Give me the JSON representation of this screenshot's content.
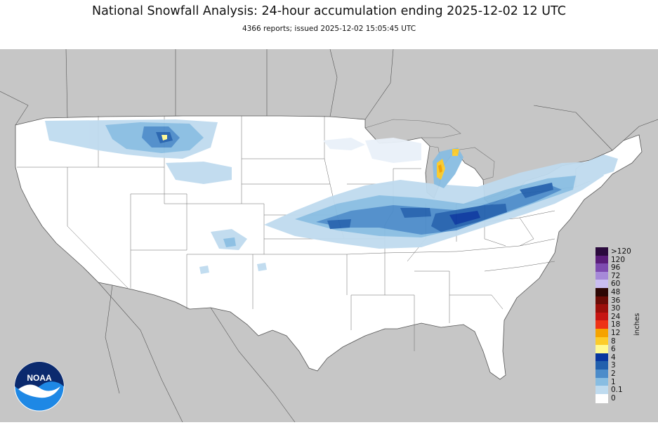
{
  "header": {
    "title": "National Snowfall Analysis: 24-hour accumulation ending 2025-12-02 12 UTC",
    "subtitle": "4366 reports; issued 2025-12-02 15:05:45 UTC"
  },
  "map": {
    "land_color": "#ffffff",
    "background_color": "#c6c6c6",
    "border_color": "#444444"
  },
  "legend": {
    "units": "inches",
    "bins": [
      {
        "label": ">120",
        "color": "#2b0a3d"
      },
      {
        "label": "120",
        "color": "#5a1d7a"
      },
      {
        "label": "96",
        "color": "#7e4bb0"
      },
      {
        "label": "72",
        "color": "#a689d8"
      },
      {
        "label": "60",
        "color": "#c9bdf0"
      },
      {
        "label": "48",
        "color": "#2d0704"
      },
      {
        "label": "36",
        "color": "#6a0c06"
      },
      {
        "label": "30",
        "color": "#9b0f0a"
      },
      {
        "label": "24",
        "color": "#c61512"
      },
      {
        "label": "18",
        "color": "#ee3316"
      },
      {
        "label": "12",
        "color": "#f5a300"
      },
      {
        "label": "8",
        "color": "#fccc2b"
      },
      {
        "label": "6",
        "color": "#fff993"
      },
      {
        "label": "4",
        "color": "#08369f"
      },
      {
        "label": "3",
        "color": "#2260ad"
      },
      {
        "label": "2",
        "color": "#4c8cca"
      },
      {
        "label": "1",
        "color": "#88bde2"
      },
      {
        "label": "0.1",
        "color": "#bfdbef"
      },
      {
        "label": "0",
        "color": "#e9f1f9"
      }
    ]
  },
  "logo": {
    "text": "NOAA",
    "icon": "noaa-logo-icon"
  }
}
